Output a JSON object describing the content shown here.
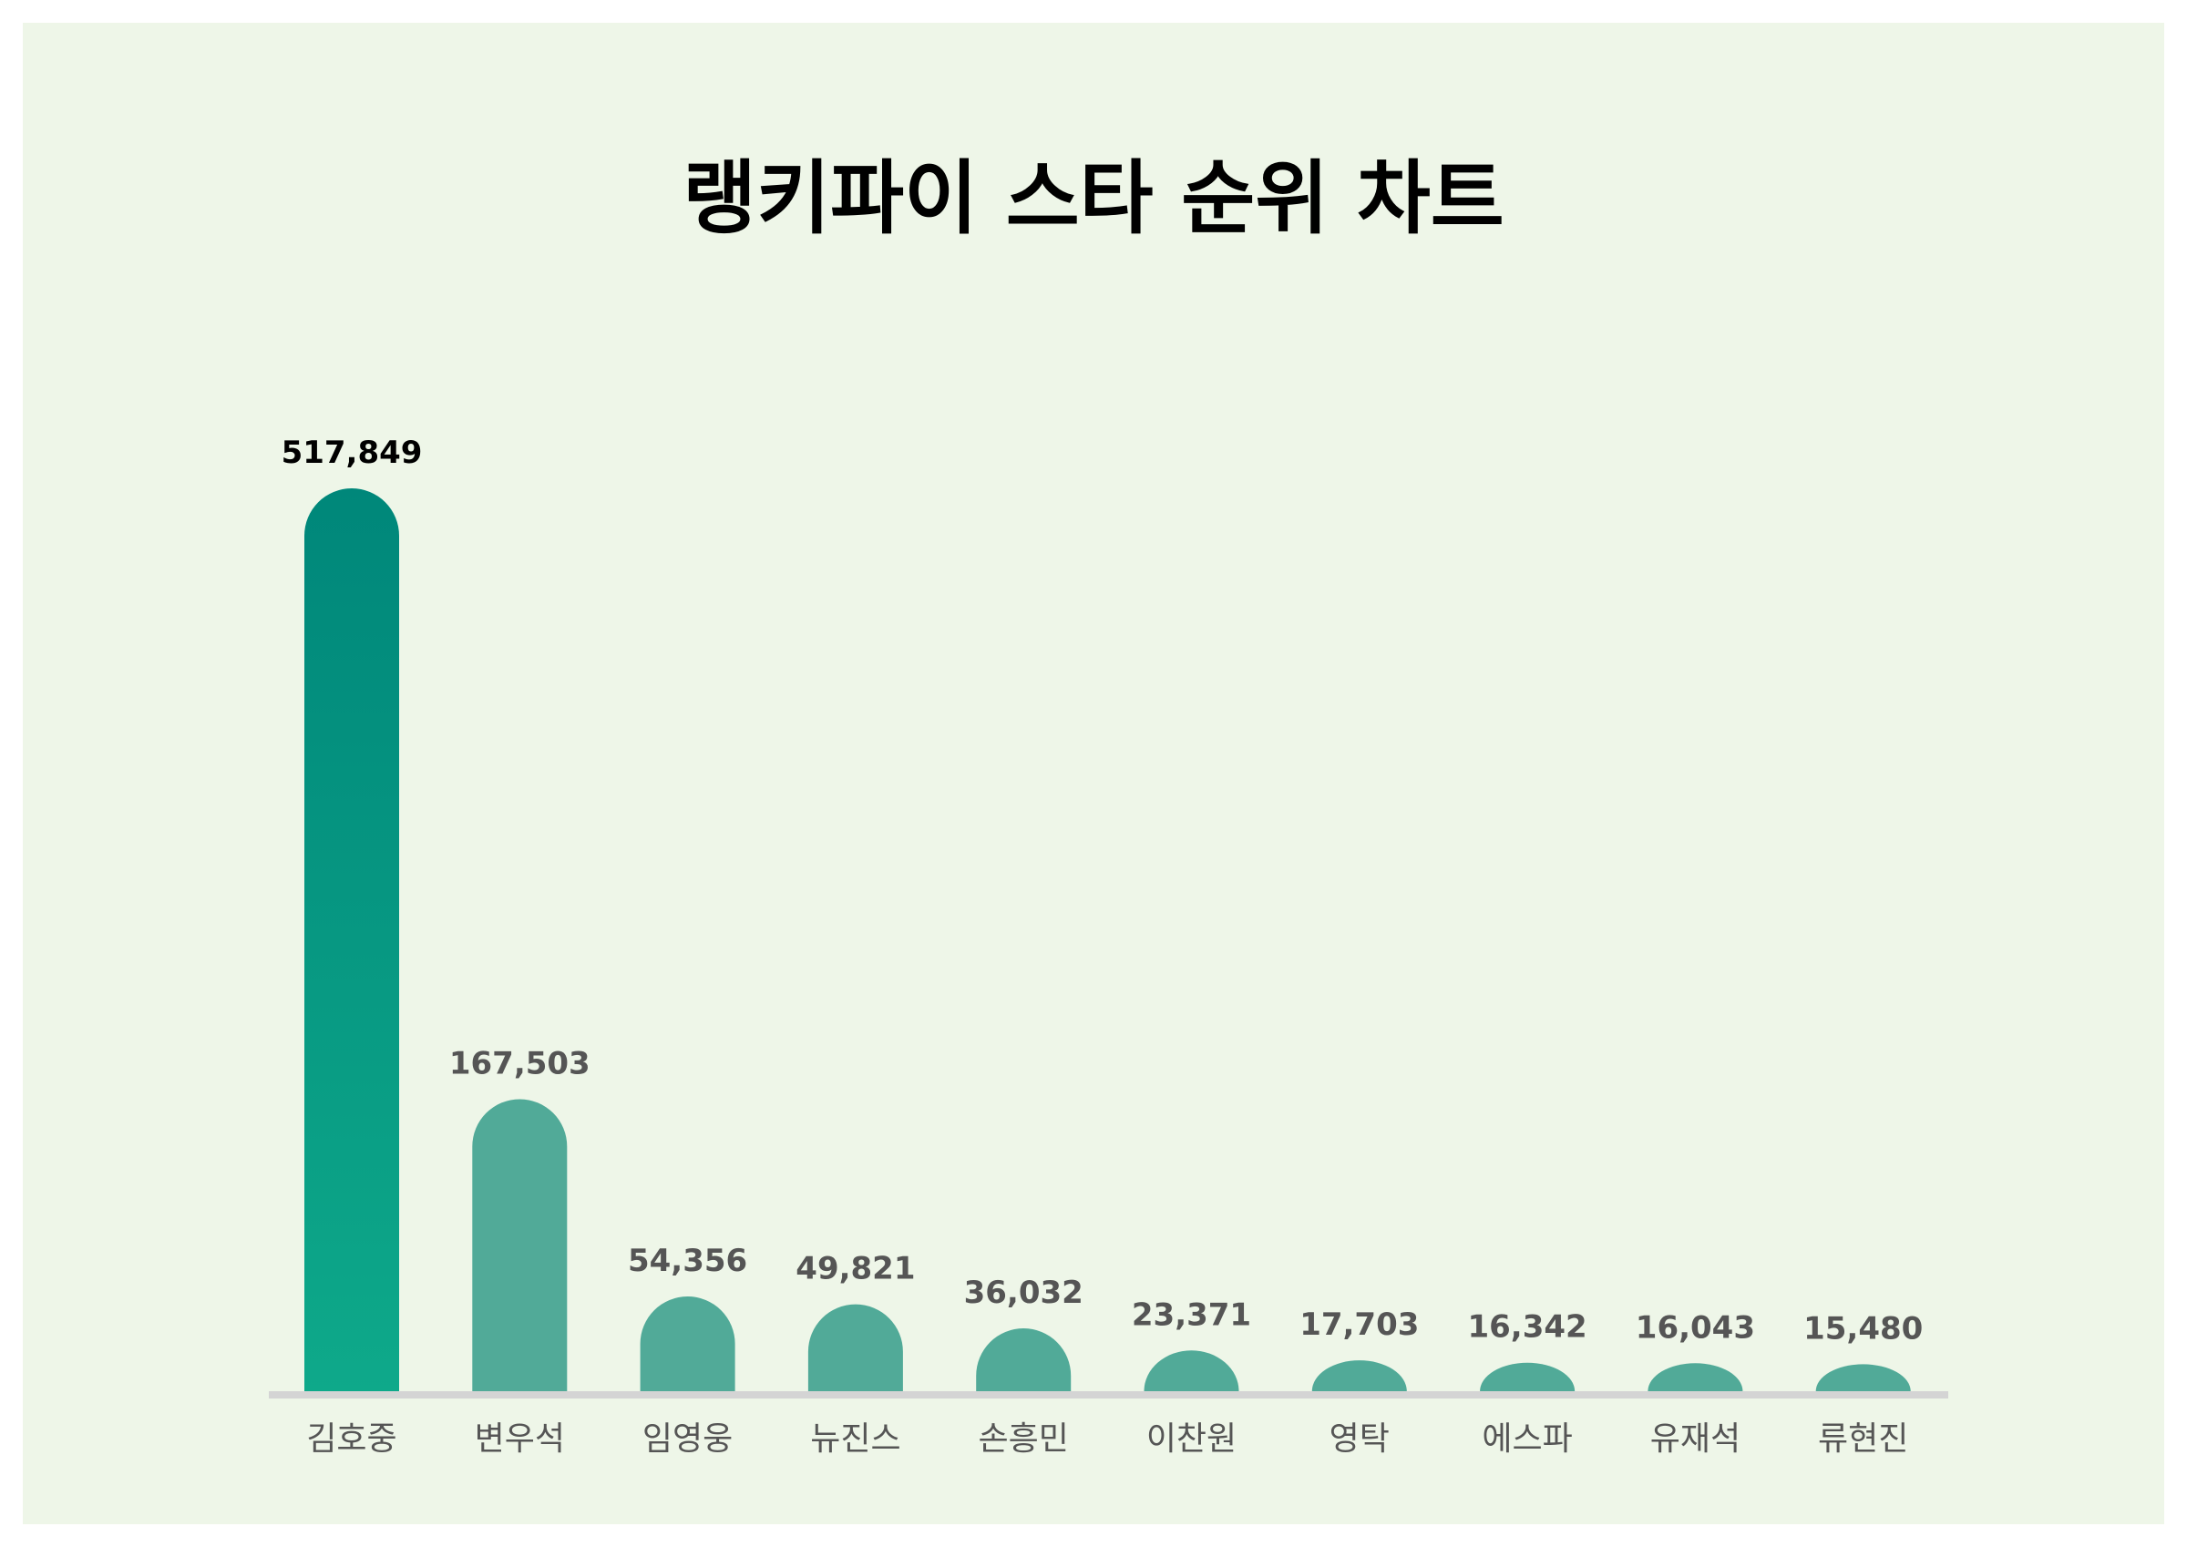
{
  "chart_data": {
    "type": "bar",
    "title": "랭키파이 스타 순위 차트",
    "categories": [
      "김호중",
      "변우석",
      "임영웅",
      "뉴진스",
      "손흥민",
      "이찬원",
      "영탁",
      "에스파",
      "유재석",
      "류현진"
    ],
    "values": [
      517849,
      167503,
      54356,
      49821,
      36032,
      23371,
      17703,
      16342,
      16043,
      15480
    ],
    "value_labels": [
      "517,849",
      "167,503",
      "54,356",
      "49,821",
      "36,032",
      "23,371",
      "17,703",
      "16,342",
      "16,043",
      "15,480"
    ],
    "xlabel": "",
    "ylabel": "",
    "ylim": [
      0,
      517849
    ],
    "grid": false,
    "legend": "none"
  },
  "colors": {
    "background": "#eef6e8",
    "first_bar_top": "#00877a",
    "first_bar_bottom": "#0ea98a",
    "other_bars": "#51aa98",
    "baseline": "#d4d4d4",
    "first_value_label": "#000000",
    "other_value_labels": "#555555"
  }
}
